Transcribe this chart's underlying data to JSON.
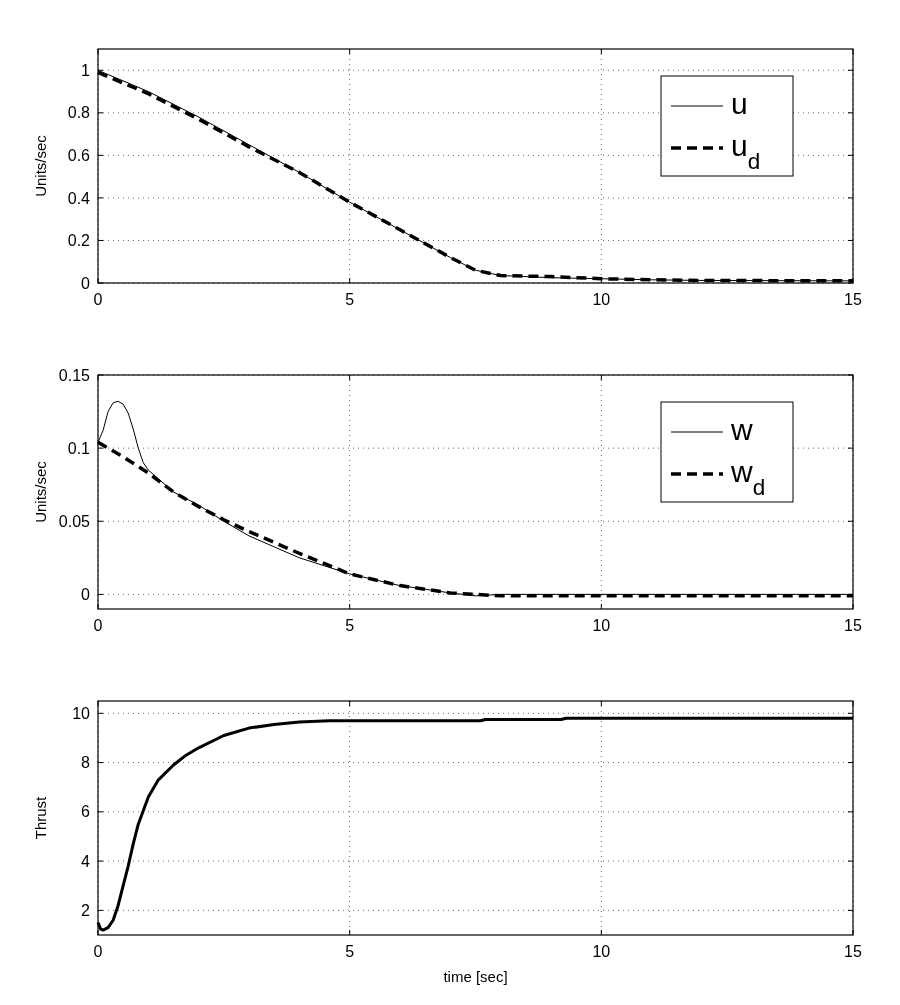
{
  "chart_data": [
    {
      "type": "line",
      "ylabel": "Units/sec",
      "xlim": [
        0,
        15
      ],
      "xticks": [
        0,
        5,
        10,
        15
      ],
      "ylim": [
        0,
        1.1
      ],
      "yticks": [
        0,
        0.2,
        0.4,
        0.6,
        0.8,
        1
      ],
      "grid": true,
      "legend": "top right",
      "marker": "none",
      "series": [
        {
          "name": "u",
          "color": "#000000",
          "line_style": "solid",
          "x": [
            0,
            1,
            2,
            3,
            4,
            5,
            6,
            7,
            7.5,
            8,
            9,
            10,
            11,
            12,
            15
          ],
          "values": [
            1,
            0.9,
            0.78,
            0.65,
            0.52,
            0.38,
            0.25,
            0.12,
            0.06,
            0.035,
            0.025,
            0.02,
            0.015,
            0.012,
            0.01
          ]
        },
        {
          "name": "u$_{d}$",
          "color": "#000000",
          "line_style": "dashed",
          "x": [
            0,
            1,
            2,
            3,
            4,
            5,
            6,
            7,
            7.5,
            8,
            9,
            10,
            11,
            12,
            15
          ],
          "values": [
            0.99,
            0.89,
            0.77,
            0.64,
            0.52,
            0.38,
            0.25,
            0.12,
            0.06,
            0.035,
            0.03,
            0.02,
            0.015,
            0.012,
            0.01
          ]
        }
      ]
    },
    {
      "type": "line",
      "ylabel": "Units/sec",
      "xlim": [
        0,
        15
      ],
      "xticks": [
        0,
        5,
        10,
        15
      ],
      "ylim": [
        -0.01,
        0.15
      ],
      "yticks": [
        0,
        0.05,
        0.1,
        0.15
      ],
      "grid": true,
      "legend": "top right",
      "marker": "none",
      "series": [
        {
          "name": "w",
          "color": "#000000",
          "line_style": "solid",
          "x": [
            0,
            0.1,
            0.2,
            0.3,
            0.4,
            0.5,
            0.6,
            0.7,
            0.8,
            0.9,
            1,
            1.5,
            2,
            2.5,
            3,
            4,
            5,
            6,
            7,
            7.5,
            8,
            15
          ],
          "values": [
            0.104,
            0.112,
            0.125,
            0.131,
            0.132,
            0.13,
            0.124,
            0.113,
            0.1,
            0.09,
            0.085,
            0.07,
            0.061,
            0.05,
            0.04,
            0.025,
            0.014,
            0.006,
            0.001,
            -0.001,
            0,
            0
          ]
        },
        {
          "name": "w$_{d}$",
          "color": "#000000",
          "line_style": "dashed",
          "x": [
            0,
            0.5,
            1,
            1.5,
            2,
            2.5,
            3,
            4,
            5,
            6,
            7,
            7.5,
            8,
            15
          ],
          "values": [
            0.104,
            0.094,
            0.083,
            0.07,
            0.06,
            0.051,
            0.043,
            0.028,
            0.014,
            0.006,
            0.001,
            0,
            -0.001,
            -0.001
          ]
        }
      ]
    },
    {
      "type": "line",
      "xlabel": "time [sec]",
      "ylabel": "Thrust",
      "xlim": [
        0,
        15
      ],
      "xticks": [
        0,
        5,
        10,
        15
      ],
      "ylim": [
        1,
        10.5
      ],
      "yticks": [
        2,
        4,
        6,
        8,
        10
      ],
      "grid": true,
      "legend": false,
      "marker": "none",
      "series": [
        {
          "color": "#000000",
          "line_style": "solid",
          "x": [
            0,
            0.05,
            0.1,
            0.2,
            0.3,
            0.4,
            0.5,
            0.6,
            0.7,
            0.8,
            1,
            1.2,
            1.5,
            1.75,
            2,
            2.5,
            3,
            3.5,
            4,
            4.6,
            7.6,
            7.7,
            9.2,
            9.3,
            15
          ],
          "values": [
            1.5,
            1.25,
            1.2,
            1.3,
            1.6,
            2.2,
            3,
            3.8,
            4.7,
            5.5,
            6.6,
            7.3,
            7.9,
            8.3,
            8.6,
            9.1,
            9.4,
            9.55,
            9.65,
            9.7,
            9.7,
            9.75,
            9.75,
            9.8,
            9.8
          ]
        }
      ]
    }
  ]
}
